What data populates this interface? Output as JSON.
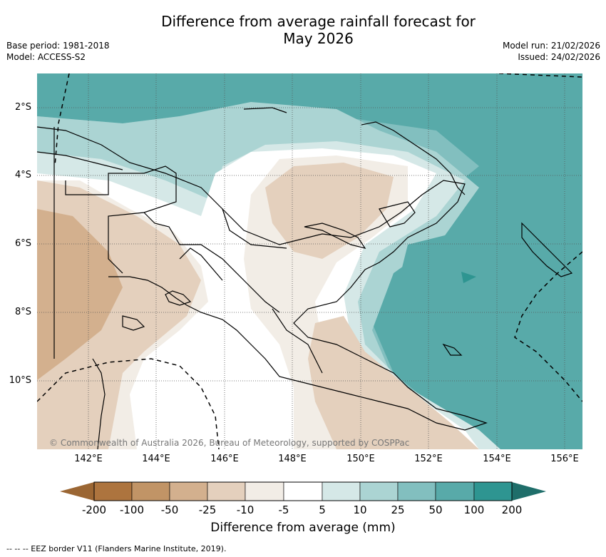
{
  "title_line1": "Difference from average rainfall forecast for",
  "title_line2": "May 2026",
  "meta_left": [
    "Base period: 1981-2018",
    "Model: ACCESS-S2"
  ],
  "meta_right": [
    "Model run: 21/02/2026",
    "Issued: 24/02/2026"
  ],
  "lat_labels": [
    "2°S",
    "4°S",
    "6°S",
    "8°S",
    "10°S"
  ],
  "lon_labels": [
    "142°E",
    "144°E",
    "146°E",
    "148°E",
    "150°E",
    "152°E",
    "154°E",
    "156°E"
  ],
  "copyright": "© Commonwealth of Australia 2026, Bureau of Meteorology, supported by COSPPac",
  "colorbar": {
    "ticks": [
      "-200",
      "-100",
      "-50",
      "-25",
      "-10",
      "-5",
      "5",
      "10",
      "25",
      "50",
      "100",
      "200"
    ],
    "colors": [
      "#9b6633",
      "#ad743e",
      "#c19466",
      "#d3b08e",
      "#e4d0bd",
      "#f2ede6",
      "#ffffff",
      "#d5e8e7",
      "#abd4d3",
      "#82bfbf",
      "#58aaa9",
      "#2e9591",
      "#1f6e6a"
    ],
    "label": "Difference from average (mm)"
  },
  "footer": "--  --  -- EEZ border V11 (Flanders Marine Institute, 2019)."
}
